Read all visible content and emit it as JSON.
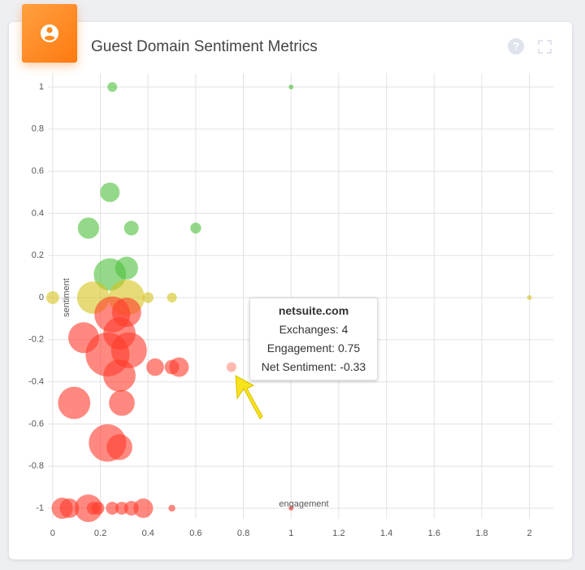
{
  "chart_data": {
    "type": "scatter",
    "title": "Guest Domain Sentiment Metrics",
    "x_label": "engagement",
    "y_label": "sentiment",
    "xlim": [
      -0.02,
      2.1
    ],
    "ylim": [
      -1.05,
      1.05
    ],
    "xticks": [
      0,
      0.2,
      0.4,
      0.6,
      0.8,
      1,
      1.2,
      1.4,
      1.6,
      1.8,
      2
    ],
    "yticks": [
      1,
      0.8,
      0.6,
      0.4,
      0.2,
      0,
      -0.2,
      -0.4,
      -0.6,
      -0.8,
      -1
    ],
    "grid": true,
    "opacity": 0.6,
    "series": [
      {
        "color": "#4cbf3a",
        "x": [
          0.25,
          1,
          0.24,
          0.15,
          0.33,
          0.6,
          0.24,
          0.31
        ],
        "values": [
          1,
          1,
          0.5,
          0.33,
          0.33,
          0.33,
          0.11,
          0.14
        ],
        "sizes": [
          4,
          1,
          16,
          19,
          9,
          5,
          44,
          22
        ]
      },
      {
        "color": "#d6c31c",
        "x": [
          0,
          0.17,
          0.31,
          0.4,
          0.5,
          2
        ],
        "values": [
          0,
          0,
          0,
          0,
          0,
          0
        ],
        "sizes": [
          7,
          44,
          54,
          5,
          4,
          1
        ]
      },
      {
        "color": "#ff3a2c",
        "x": [
          0.25,
          0.31,
          0.13,
          0.28,
          0.23,
          0.32,
          0.28,
          0.43,
          0.5,
          0.53,
          0.09,
          0.29,
          0.23,
          0.28,
          0.04,
          0.07,
          0.15,
          0.17,
          0.19,
          0.25,
          0.29,
          0.33,
          0.38,
          0.5,
          1
        ],
        "values": [
          -0.08,
          -0.07,
          -0.19,
          -0.17,
          -0.27,
          -0.25,
          -0.37,
          -0.33,
          -0.33,
          -0.33,
          -0.5,
          -0.5,
          -0.69,
          -0.71,
          -1,
          -1,
          -1,
          -1,
          -1,
          -1,
          -1,
          -1,
          -1,
          -1,
          -1
        ],
        "sizes": [
          54,
          36,
          40,
          44,
          81,
          54,
          44,
          13,
          9,
          16,
          44,
          28,
          59,
          28,
          19,
          16,
          32,
          7,
          7,
          7,
          7,
          9,
          16,
          2,
          1
        ]
      },
      {
        "color": "#ff8a78",
        "x": [
          0.75
        ],
        "values": [
          -0.33
        ],
        "sizes": [
          4
        ]
      }
    ],
    "tooltip": {
      "title": "netsuite.com",
      "lines": [
        "Exchanges: 4",
        "Engagement: 0.75",
        "Net Sentiment: -0.33"
      ]
    }
  }
}
